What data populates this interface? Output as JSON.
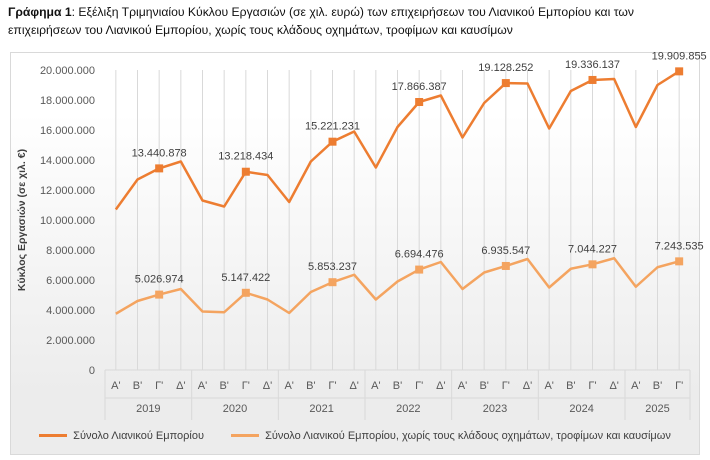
{
  "title": {
    "bold": "Γράφημα 1",
    "text": ": Εξέλιξη Τριμηνιαίου Κύκλου Εργασιών (σε χιλ. ευρώ) των επιχειρήσεων του Λιανικού Εμπορίου και των επιχειρήσεων του Λιανικού Εμπορίου, χωρίς τους κλάδους οχημάτων, τροφίμων και καυσίμων"
  },
  "chart_data": {
    "type": "line",
    "ylabel": "Κύκλος Εργασιών (σε χιλ. €)",
    "ylim": [
      0,
      20000000
    ],
    "yticks": [
      "0",
      "2.000.000",
      "4.000.000",
      "6.000.000",
      "8.000.000",
      "10.000.000",
      "12.000.000",
      "14.000.000",
      "16.000.000",
      "18.000.000",
      "20.000.000"
    ],
    "grid": "vertical",
    "legend": "bottom",
    "years": [
      "2019",
      "2020",
      "2021",
      "2022",
      "2023",
      "2024",
      "2025"
    ],
    "quarters": [
      "Α'",
      "Β'",
      "Γ'",
      "Δ'"
    ],
    "categories": [
      "2019 Α'",
      "2019 Β'",
      "2019 Γ'",
      "2019 Δ'",
      "2020 Α'",
      "2020 Β'",
      "2020 Γ'",
      "2020 Δ'",
      "2021 Α'",
      "2021 Β'",
      "2021 Γ'",
      "2021 Δ'",
      "2022 Α'",
      "2022 Β'",
      "2022 Γ'",
      "2022 Δ'",
      "2023 Α'",
      "2023 Β'",
      "2023 Γ'",
      "2023 Δ'",
      "2024 Α'",
      "2024 Β'",
      "2024 Γ'",
      "2024 Δ'",
      "2025 Α'",
      "2025 Β'",
      "2025 Γ'"
    ],
    "series": [
      {
        "name": "Σύνολο Λιανικού Εμπορίου",
        "color": "#ed7d31",
        "values": [
          10700000,
          12700000,
          13440878,
          13900000,
          11300000,
          10900000,
          13218434,
          13000000,
          11200000,
          13900000,
          15221231,
          15900000,
          13500000,
          16200000,
          17866387,
          18300000,
          15500000,
          17800000,
          19128252,
          19100000,
          16100000,
          18600000,
          19336137,
          19400000,
          16200000,
          19000000,
          19909855
        ],
        "labels": {
          "2": "13.440.878",
          "6": "13.218.434",
          "10": "15.221.231",
          "14": "17.866.387",
          "18": "19.128.252",
          "22": "19.336.137",
          "26": "19.909.855"
        }
      },
      {
        "name": "Σύνολο Λιανικού Εμπορίου, χωρίς τους κλάδους οχημάτων, τροφίμων και καυσίμων",
        "color": "#f4a460",
        "values": [
          3750000,
          4600000,
          5026974,
          5400000,
          3900000,
          3850000,
          5147422,
          4700000,
          3800000,
          5200000,
          5853237,
          6350000,
          4700000,
          5900000,
          6694476,
          7200000,
          5400000,
          6500000,
          6935547,
          7400000,
          5500000,
          6750000,
          7044227,
          7450000,
          5550000,
          6850000,
          7243535
        ],
        "labels": {
          "2": "5.026.974",
          "6": "5.147.422",
          "10": "5.853.237",
          "14": "6.694.476",
          "18": "6.935.547",
          "22": "7.044.227",
          "26": "7.243.535"
        }
      }
    ]
  }
}
